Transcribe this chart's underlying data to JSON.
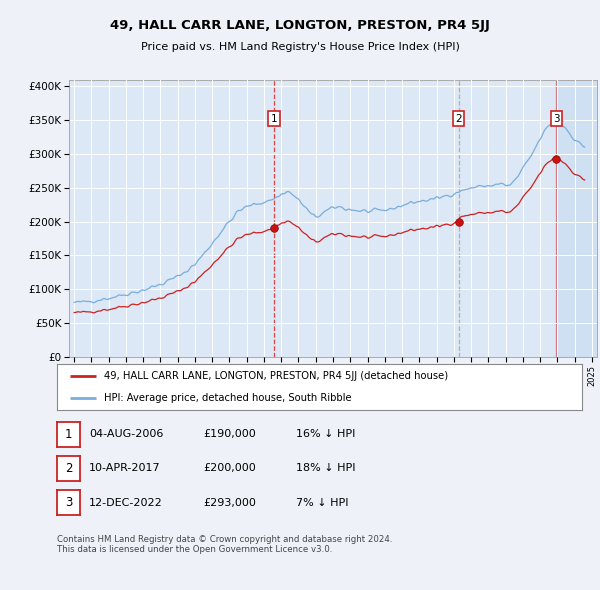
{
  "title": "49, HALL CARR LANE, LONGTON, PRESTON, PR4 5JJ",
  "subtitle": "Price paid vs. HM Land Registry's House Price Index (HPI)",
  "background_color": "#eef2f8",
  "plot_bg_color": "#dce8f5",
  "legend_line1": "49, HALL CARR LANE, LONGTON, PRESTON, PR4 5JJ (detached house)",
  "legend_line2": "HPI: Average price, detached house, South Ribble",
  "footer": "Contains HM Land Registry data © Crown copyright and database right 2024.\nThis data is licensed under the Open Government Licence v3.0.",
  "table_rows": [
    {
      "num": "1",
      "date": "04-AUG-2006",
      "price": "£190,000",
      "hpi": "16% ↓ HPI"
    },
    {
      "num": "2",
      "date": "10-APR-2017",
      "price": "£200,000",
      "hpi": "18% ↓ HPI"
    },
    {
      "num": "3",
      "date": "12-DEC-2022",
      "price": "£293,000",
      "hpi": "7% ↓ HPI"
    }
  ],
  "sold_dates": [
    2006.586,
    2017.274,
    2022.949
  ],
  "sold_prices": [
    190000,
    200000,
    293000
  ],
  "ylim": [
    0,
    410000
  ],
  "xlim": [
    1994.7,
    2025.3
  ],
  "yticks": [
    0,
    50000,
    100000,
    150000,
    200000,
    250000,
    300000,
    350000,
    400000
  ]
}
